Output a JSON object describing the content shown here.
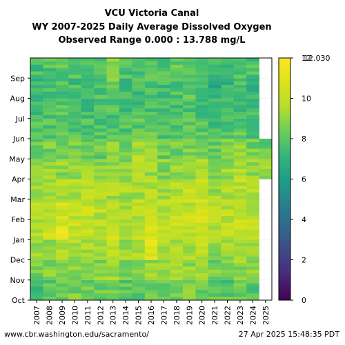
{
  "chart_data": {
    "type": "heatmap",
    "title": [
      "VCU Victoria Canal",
      "WY 2007-2025 Daily Average Dissolved Oxygen",
      "Observed Range 0.000 : 13.788 mg/L"
    ],
    "x": [
      "2007",
      "2008",
      "2009",
      "2010",
      "2011",
      "2012",
      "2013",
      "2014",
      "2015",
      "2016",
      "2017",
      "2018",
      "2019",
      "2020",
      "2021",
      "2022",
      "2023",
      "2024",
      "2025"
    ],
    "y": [
      "Oct",
      "Nov",
      "Dec",
      "Jan",
      "Feb",
      "Mar",
      "Apr",
      "May",
      "Jun",
      "Jul",
      "Aug",
      "Sep"
    ],
    "colorbar": {
      "min": 0,
      "max": 12,
      "ticks": [
        "0",
        "2",
        "4",
        "6",
        "8",
        "10",
        "12"
      ],
      "max_label": "12.030",
      "colormap": "viridis"
    },
    "monthly_mean": [
      [
        7.5,
        8.0,
        8.5,
        8.5,
        8.3,
        8.2,
        8.5,
        8.0,
        8.0,
        8.5,
        8.0,
        8.5,
        8.5,
        8.5,
        8.0,
        8.0,
        8.3,
        8.0,
        null
      ],
      [
        8.5,
        8.8,
        9.0,
        9.0,
        9.0,
        8.8,
        9.2,
        8.8,
        8.5,
        9.0,
        8.8,
        9.0,
        9.0,
        9.0,
        8.5,
        8.8,
        9.0,
        8.8,
        null
      ],
      [
        9.0,
        9.2,
        9.8,
        9.5,
        9.5,
        9.3,
        9.6,
        9.2,
        9.5,
        11.0,
        9.3,
        9.5,
        9.5,
        9.8,
        9.0,
        9.2,
        9.5,
        9.3,
        null
      ],
      [
        9.8,
        10.0,
        10.8,
        10.2,
        10.0,
        10.0,
        10.2,
        9.8,
        10.0,
        10.5,
        10.0,
        10.2,
        10.0,
        10.5,
        9.8,
        10.0,
        10.0,
        9.8,
        null
      ],
      [
        9.8,
        10.0,
        10.3,
        10.0,
        10.2,
        9.8,
        10.0,
        9.6,
        9.8,
        10.0,
        9.6,
        10.0,
        10.0,
        10.5,
        9.7,
        9.8,
        10.0,
        9.7,
        null
      ],
      [
        9.4,
        9.5,
        9.5,
        9.6,
        9.8,
        9.5,
        9.5,
        9.3,
        9.3,
        9.7,
        9.3,
        9.8,
        10.0,
        10.2,
        9.3,
        9.5,
        9.8,
        9.6,
        null
      ],
      [
        8.8,
        9.0,
        9.0,
        9.0,
        9.2,
        8.8,
        9.0,
        8.8,
        10.0,
        9.2,
        8.8,
        9.0,
        9.2,
        9.5,
        8.8,
        9.0,
        9.3,
        9.0,
        9.0
      ],
      [
        8.2,
        8.5,
        8.5,
        8.5,
        8.5,
        8.2,
        8.8,
        8.3,
        9.5,
        8.8,
        8.3,
        8.5,
        8.5,
        8.8,
        8.3,
        8.5,
        8.8,
        8.5,
        8.3
      ],
      [
        7.8,
        7.8,
        8.0,
        8.0,
        7.8,
        7.8,
        8.0,
        7.8,
        8.0,
        8.2,
        7.8,
        7.8,
        8.0,
        8.0,
        7.6,
        7.8,
        8.0,
        7.8,
        null
      ],
      [
        7.3,
        7.5,
        7.8,
        7.5,
        7.5,
        7.8,
        7.8,
        7.3,
        7.5,
        7.8,
        7.5,
        7.5,
        7.8,
        7.5,
        7.0,
        7.2,
        7.5,
        7.5,
        null
      ],
      [
        7.3,
        7.5,
        7.8,
        7.5,
        7.5,
        7.8,
        8.5,
        7.3,
        7.5,
        7.8,
        7.5,
        7.8,
        8.0,
        7.5,
        6.8,
        7.2,
        7.5,
        7.3,
        null
      ],
      [
        7.5,
        7.8,
        8.0,
        7.8,
        7.8,
        8.0,
        9.0,
        7.6,
        7.8,
        8.0,
        7.8,
        8.0,
        8.2,
        7.8,
        7.2,
        7.5,
        7.8,
        7.6,
        null
      ]
    ]
  },
  "footer": {
    "url": "www.cbr.washington.edu/sacramento/",
    "timestamp": "27 Apr 2025 15:48:35 PDT"
  }
}
